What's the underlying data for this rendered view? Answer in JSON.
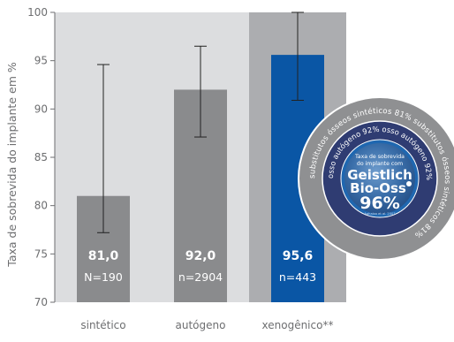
{
  "chart_data": {
    "type": "bar",
    "title": "",
    "xlabel": "",
    "ylabel": "Taxa de sobrevida do implante em %",
    "ylim": [
      70,
      100
    ],
    "yticks": [
      70,
      75,
      80,
      85,
      90,
      95,
      100
    ],
    "categories": [
      "sintético",
      "autógeno",
      "xenogênico**"
    ],
    "values": [
      81.0,
      92.0,
      95.6
    ],
    "value_labels": [
      "81,0",
      "92,0",
      "95,6"
    ],
    "n_labels": [
      "N=190",
      "n=2904",
      "n=443"
    ],
    "error_bars": [
      {
        "low": 77.2,
        "high": 94.6
      },
      {
        "low": 87.1,
        "high": 96.5
      },
      {
        "low": 90.9,
        "high": 100.0
      }
    ],
    "bar_colors": [
      "#8a8b8d",
      "#8a8b8d",
      "#0a56a5"
    ],
    "background_bands": [
      "#dcdddf",
      "#dcdddf",
      "#acadb0"
    ],
    "grid": false
  },
  "seal": {
    "outer_ring_text": "substitutos ósseos sintéticos 81% substitutos ósseos sintéticos 81%",
    "inner_ring_text": "osso autógeno 92% osso autógeno 92%",
    "center_line1": "Taxa de sobrevida",
    "center_line2": "do implante com",
    "brand_line1": "Geistlich",
    "brand_line2": "Bio-Oss",
    "brand_pct": "96%",
    "fine_print": "Aghaloo et al. 2007",
    "colors": {
      "outer": "#8f9092",
      "ring2": "#2f3c72",
      "ring3": "#1f67b0",
      "center": "#3a72ad"
    }
  }
}
